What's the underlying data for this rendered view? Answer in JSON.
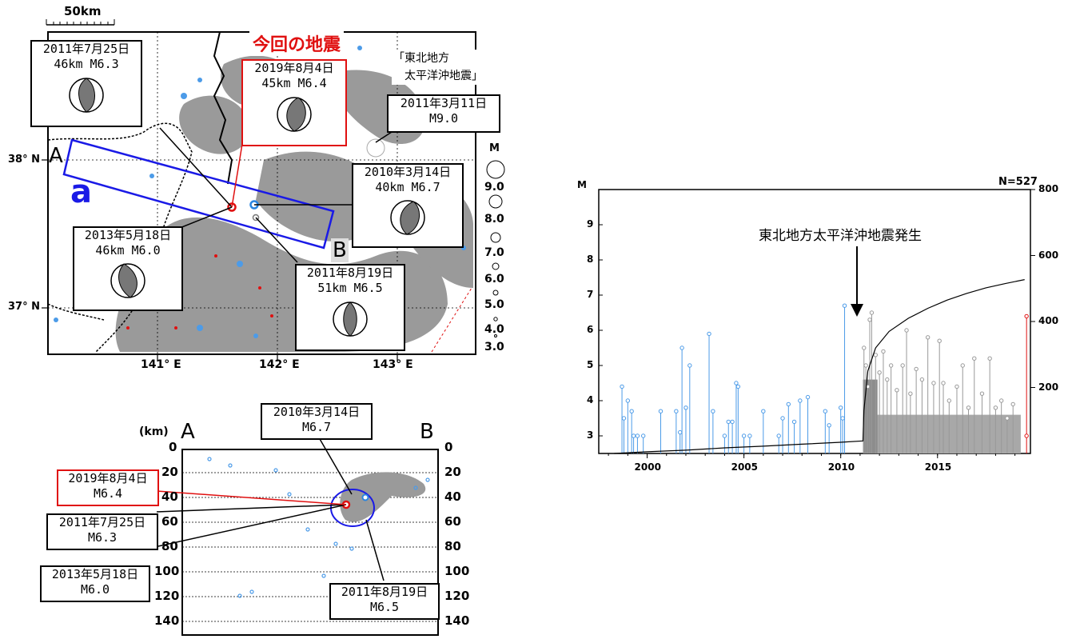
{
  "map": {
    "scale_label": "50km",
    "title": "今回の地震",
    "lat_labels": [
      "38° N",
      "37° N"
    ],
    "lon_labels": [
      "141° E",
      "142° E",
      "143° E"
    ],
    "section_a": "A",
    "section_b": "B",
    "region_label": "a",
    "tohoku_label": [
      "「東北地方",
      "太平洋沖地震」"
    ],
    "mag_legend_title": "M",
    "mag_legend": [
      "9.0",
      "8.0",
      "7.0",
      "6.0",
      "5.0",
      "4.0",
      "3.0"
    ],
    "callouts": [
      {
        "line1": "2011年7月25日",
        "line2": "46km  M6.3"
      },
      {
        "line1": "2019年8月4日",
        "line2": "45km  M6.4"
      },
      {
        "line1": "2011年3月11日",
        "line2": "M9.0"
      },
      {
        "line1": "2010年3月14日",
        "line2": "40km  M6.7"
      },
      {
        "line1": "2013年5月18日",
        "line2": "46km  M6.0"
      },
      {
        "line1": "2011年8月19日",
        "line2": "51km  M6.5"
      }
    ]
  },
  "section": {
    "unit": "(km)",
    "a": "A",
    "b": "B",
    "depth_ticks": [
      "0",
      "20",
      "40",
      "60",
      "80",
      "100",
      "120",
      "140"
    ],
    "callouts": [
      {
        "line1": "2010年3月14日",
        "line2": "M6.7"
      },
      {
        "line1": "2019年8月4日",
        "line2": "M6.4"
      },
      {
        "line1": "2011年7月25日",
        "line2": "M6.3"
      },
      {
        "line1": "2013年5月18日",
        "line2": "M6.0"
      },
      {
        "line1": "2011年8月19日",
        "line2": "M6.5"
      }
    ]
  },
  "chart_data": {
    "type": "scatter",
    "title": "",
    "count_label": "N=527",
    "ylabel_left": "M",
    "annotation": "東北地方太平洋沖地震発生",
    "x_ticks": [
      "2000",
      "2005",
      "2010",
      "2015"
    ],
    "y_left_ticks": [
      "3",
      "4",
      "5",
      "6",
      "7",
      "8",
      "9"
    ],
    "y_right_ticks": [
      "200",
      "400",
      "600",
      "800"
    ],
    "xlim": [
      1997.5,
      2019.8
    ],
    "ylim_left": [
      2.5,
      10.0
    ],
    "ylim_right": [
      0,
      800
    ],
    "events_before_2011": [
      {
        "x": 1998.7,
        "m": 4.4
      },
      {
        "x": 1998.8,
        "m": 3.5
      },
      {
        "x": 1999.0,
        "m": 4.0
      },
      {
        "x": 1999.2,
        "m": 3.7
      },
      {
        "x": 1999.3,
        "m": 3.0
      },
      {
        "x": 1999.5,
        "m": 3.0
      },
      {
        "x": 1999.8,
        "m": 3.0
      },
      {
        "x": 2000.7,
        "m": 3.7
      },
      {
        "x": 2001.5,
        "m": 3.7
      },
      {
        "x": 2001.7,
        "m": 3.1
      },
      {
        "x": 2001.8,
        "m": 5.5
      },
      {
        "x": 2002.0,
        "m": 3.8
      },
      {
        "x": 2002.2,
        "m": 5.0
      },
      {
        "x": 2003.2,
        "m": 5.9
      },
      {
        "x": 2003.4,
        "m": 3.7
      },
      {
        "x": 2004.0,
        "m": 3.0
      },
      {
        "x": 2004.2,
        "m": 3.4
      },
      {
        "x": 2004.4,
        "m": 3.4
      },
      {
        "x": 2004.6,
        "m": 4.5
      },
      {
        "x": 2004.7,
        "m": 4.4
      },
      {
        "x": 2005.0,
        "m": 3.0
      },
      {
        "x": 2005.3,
        "m": 3.0
      },
      {
        "x": 2006.0,
        "m": 3.7
      },
      {
        "x": 2006.8,
        "m": 3.0
      },
      {
        "x": 2007.0,
        "m": 3.5
      },
      {
        "x": 2007.3,
        "m": 3.9
      },
      {
        "x": 2007.6,
        "m": 3.4
      },
      {
        "x": 2007.9,
        "m": 4.0
      },
      {
        "x": 2008.3,
        "m": 4.1
      },
      {
        "x": 2009.2,
        "m": 3.7
      },
      {
        "x": 2009.4,
        "m": 3.3
      },
      {
        "x": 2010.0,
        "m": 3.8
      },
      {
        "x": 2010.1,
        "m": 3.5
      },
      {
        "x": 2010.2,
        "m": 6.7
      }
    ],
    "events_after_2011": [
      {
        "x": 2011.2,
        "m": 5.5
      },
      {
        "x": 2011.3,
        "m": 5.0
      },
      {
        "x": 2011.4,
        "m": 4.4
      },
      {
        "x": 2011.5,
        "m": 6.3
      },
      {
        "x": 2011.6,
        "m": 6.5
      },
      {
        "x": 2011.8,
        "m": 5.3
      },
      {
        "x": 2012.0,
        "m": 4.8
      },
      {
        "x": 2012.2,
        "m": 5.4
      },
      {
        "x": 2012.4,
        "m": 4.6
      },
      {
        "x": 2012.6,
        "m": 5.0
      },
      {
        "x": 2012.9,
        "m": 4.3
      },
      {
        "x": 2013.2,
        "m": 5.0
      },
      {
        "x": 2013.4,
        "m": 6.0
      },
      {
        "x": 2013.6,
        "m": 4.2
      },
      {
        "x": 2013.9,
        "m": 4.9
      },
      {
        "x": 2014.2,
        "m": 4.6
      },
      {
        "x": 2014.5,
        "m": 5.8
      },
      {
        "x": 2014.8,
        "m": 4.5
      },
      {
        "x": 2015.1,
        "m": 5.7
      },
      {
        "x": 2015.3,
        "m": 4.5
      },
      {
        "x": 2015.6,
        "m": 4.0
      },
      {
        "x": 2016.0,
        "m": 4.4
      },
      {
        "x": 2016.3,
        "m": 5.0
      },
      {
        "x": 2016.6,
        "m": 3.8
      },
      {
        "x": 2016.9,
        "m": 5.2
      },
      {
        "x": 2017.3,
        "m": 4.2
      },
      {
        "x": 2017.7,
        "m": 5.2
      },
      {
        "x": 2018.0,
        "m": 3.8
      },
      {
        "x": 2018.3,
        "m": 4.0
      },
      {
        "x": 2018.6,
        "m": 3.5
      },
      {
        "x": 2018.9,
        "m": 3.9
      }
    ],
    "current_event": {
      "x": 2019.6,
      "m": 6.4
    },
    "current_event_small": {
      "x": 2019.6,
      "m": 3.0
    },
    "cumulative": [
      {
        "x": 1998.3,
        "n": 0
      },
      {
        "x": 2000,
        "n": 5
      },
      {
        "x": 2002,
        "n": 10
      },
      {
        "x": 2004,
        "n": 17
      },
      {
        "x": 2006,
        "n": 22
      },
      {
        "x": 2008,
        "n": 28
      },
      {
        "x": 2010,
        "n": 34
      },
      {
        "x": 2011.15,
        "n": 38
      },
      {
        "x": 2011.2,
        "n": 130
      },
      {
        "x": 2011.4,
        "n": 250
      },
      {
        "x": 2011.8,
        "n": 320
      },
      {
        "x": 2012.5,
        "n": 370
      },
      {
        "x": 2013.5,
        "n": 410
      },
      {
        "x": 2014.5,
        "n": 440
      },
      {
        "x": 2015.5,
        "n": 465
      },
      {
        "x": 2016.5,
        "n": 485
      },
      {
        "x": 2017.5,
        "n": 502
      },
      {
        "x": 2018.5,
        "n": 515
      },
      {
        "x": 2019.5,
        "n": 527
      }
    ]
  }
}
